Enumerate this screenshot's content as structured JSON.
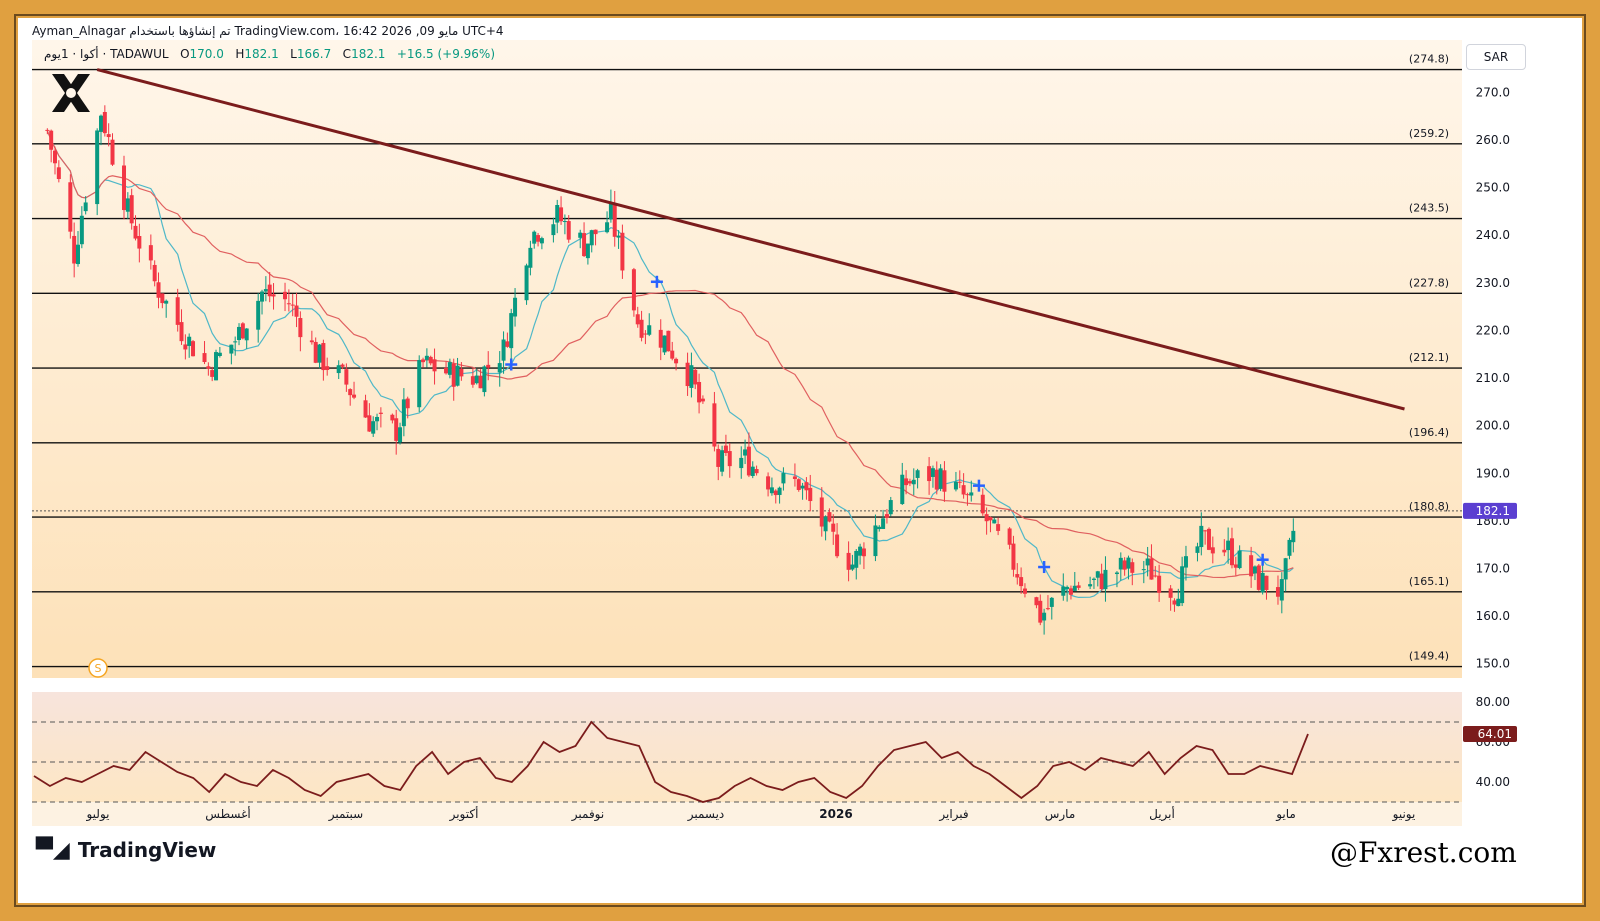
{
  "header": {
    "line1": "Ayman_Alnagar تم إنشاؤها باستخدام TradingView.com، 16:42 2026 ,09 مايو UTC+4",
    "symbol": "أكوا · 1يوم · TADAWUL",
    "open_label": "O",
    "open": "170.0",
    "high_label": "H",
    "high": "182.1",
    "low_label": "L",
    "low": "166.7",
    "close_label": "C",
    "close": "182.1",
    "change": "+16.5 (+9.96%)",
    "currency": "SAR"
  },
  "footer": {
    "brand": "TradingView",
    "watermark": "@Fxrest.com"
  },
  "colors": {
    "up": "#089981",
    "down": "#f23645",
    "trendline": "#7b1c1c",
    "sma_fast": "#4fb8c8",
    "sma_slow": "#e06060",
    "rsi": "#7b1c1c",
    "frame": "#e0a040",
    "marker": "#2962ff"
  },
  "chart_data": [
    {
      "type": "candlestick",
      "ylim": [
        147,
        281
      ],
      "y_ticks": [
        150.0,
        160.0,
        170.0,
        180.0,
        190.0,
        200.0,
        210.0,
        220.0,
        230.0,
        240.0,
        250.0,
        260.0,
        270.0
      ],
      "last_price": "182.1",
      "fib_levels": [
        {
          "value": 274.8,
          "label": "(274.8)"
        },
        {
          "value": 259.2,
          "label": "(259.2)"
        },
        {
          "value": 243.5,
          "label": "(243.5)"
        },
        {
          "value": 227.8,
          "label": "(227.8)"
        },
        {
          "value": 212.1,
          "label": "(212.1)"
        },
        {
          "value": 196.4,
          "label": "(196.4)"
        },
        {
          "value": 180.8,
          "label": "(180.8)"
        },
        {
          "value": 165.1,
          "label": "(165.1)"
        },
        {
          "value": 149.4,
          "label": "(149.4)"
        }
      ],
      "x_labels": [
        "يوليو",
        "أغسطس",
        "سبتمبر",
        "أكتوبر",
        "نوفمبر",
        "ديسمبر",
        "2026",
        "فبراير",
        "مارس",
        "أبريل",
        "مايو",
        "يونيو"
      ],
      "trendline": {
        "from": {
          "date": "2025-06-29",
          "price": 274.8
        },
        "to": {
          "date": "2026-06-05",
          "price": 203.5
        }
      },
      "close_path": [
        {
          "date": "2025-06-16",
          "close": 262
        },
        {
          "date": "2025-06-23",
          "close": 236
        },
        {
          "date": "2025-06-30",
          "close": 266
        },
        {
          "date": "2025-07-07",
          "close": 245
        },
        {
          "date": "2025-07-14",
          "close": 230
        },
        {
          "date": "2025-07-21",
          "close": 220
        },
        {
          "date": "2025-07-28",
          "close": 212
        },
        {
          "date": "2025-08-04",
          "close": 218
        },
        {
          "date": "2025-08-11",
          "close": 228
        },
        {
          "date": "2025-08-18",
          "close": 226
        },
        {
          "date": "2025-08-25",
          "close": 215
        },
        {
          "date": "2025-09-01",
          "close": 210
        },
        {
          "date": "2025-09-08",
          "close": 201
        },
        {
          "date": "2025-09-15",
          "close": 199
        },
        {
          "date": "2025-09-22",
          "close": 213
        },
        {
          "date": "2025-09-29",
          "close": 211
        },
        {
          "date": "2025-10-06",
          "close": 210
        },
        {
          "date": "2025-10-13",
          "close": 216
        },
        {
          "date": "2025-10-20",
          "close": 240
        },
        {
          "date": "2025-10-27",
          "close": 244
        },
        {
          "date": "2025-11-03",
          "close": 238
        },
        {
          "date": "2025-11-10",
          "close": 244
        },
        {
          "date": "2025-11-17",
          "close": 222
        },
        {
          "date": "2025-11-24",
          "close": 218
        },
        {
          "date": "2025-12-01",
          "close": 210
        },
        {
          "date": "2025-12-08",
          "close": 192
        },
        {
          "date": "2025-12-15",
          "close": 193
        },
        {
          "date": "2025-12-22",
          "close": 188
        },
        {
          "date": "2025-12-29",
          "close": 188
        },
        {
          "date": "2026-01-05",
          "close": 178
        },
        {
          "date": "2026-01-12",
          "close": 171
        },
        {
          "date": "2026-01-19",
          "close": 180
        },
        {
          "date": "2026-01-26",
          "close": 188
        },
        {
          "date": "2026-02-02",
          "close": 190
        },
        {
          "date": "2026-02-09",
          "close": 186
        },
        {
          "date": "2026-02-16",
          "close": 180
        },
        {
          "date": "2026-02-23",
          "close": 171
        },
        {
          "date": "2026-03-02",
          "close": 160
        },
        {
          "date": "2026-03-09",
          "close": 166
        },
        {
          "date": "2026-03-16",
          "close": 167
        },
        {
          "date": "2026-03-23",
          "close": 170
        },
        {
          "date": "2026-03-30",
          "close": 170
        },
        {
          "date": "2026-04-06",
          "close": 165
        },
        {
          "date": "2026-04-13",
          "close": 176
        },
        {
          "date": "2026-04-20",
          "close": 174
        },
        {
          "date": "2026-04-27",
          "close": 168
        },
        {
          "date": "2026-05-04",
          "close": 165
        },
        {
          "date": "2026-05-08",
          "close": 182.1
        }
      ]
    },
    {
      "type": "line",
      "name": "RSI",
      "ylim": [
        30,
        85
      ],
      "y_ticks": [
        40.0,
        60.0,
        80.0
      ],
      "last_value": "64.01",
      "bands": [
        70,
        50,
        30
      ],
      "values": [
        43,
        38,
        42,
        40,
        44,
        48,
        46,
        55,
        50,
        45,
        42,
        35,
        44,
        40,
        38,
        46,
        42,
        36,
        33,
        40,
        42,
        44,
        38,
        36,
        48,
        55,
        44,
        50,
        52,
        42,
        40,
        48,
        60,
        55,
        58,
        70,
        62,
        60,
        58,
        40,
        35,
        33,
        30,
        32,
        38,
        42,
        38,
        36,
        40,
        42,
        35,
        32,
        38,
        48,
        56,
        58,
        60,
        52,
        55,
        48,
        44,
        38,
        32,
        38,
        48,
        50,
        46,
        52,
        50,
        48,
        55,
        44,
        52,
        58,
        56,
        44,
        44,
        48,
        46,
        44,
        64
      ]
    }
  ]
}
